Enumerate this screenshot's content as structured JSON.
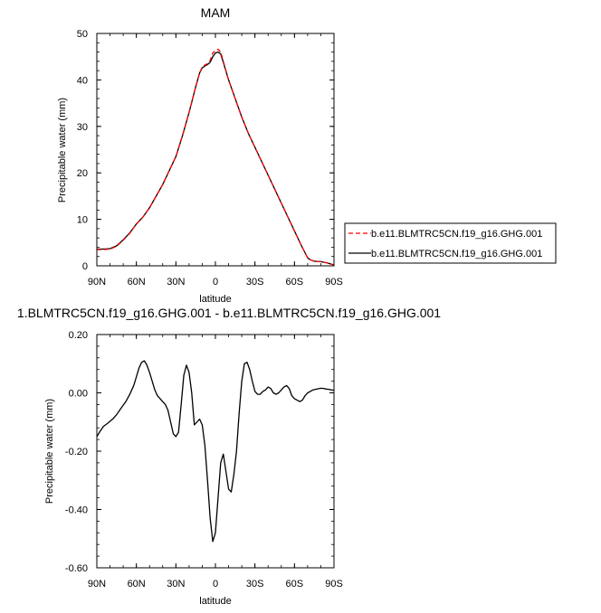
{
  "chart_data": [
    {
      "type": "line",
      "title": "MAM",
      "xlabel": "latitude",
      "ylabel": "Precipitable water (mm)",
      "x_tick_labels": [
        "90N",
        "60N",
        "30N",
        "0",
        "30S",
        "60S",
        "90S"
      ],
      "x_tick_values": [
        90,
        60,
        30,
        0,
        -30,
        -60,
        -90
      ],
      "xlim": [
        90,
        -90
      ],
      "ylim": [
        0,
        50
      ],
      "y_ticks": [
        0,
        10,
        20,
        30,
        40,
        50
      ],
      "y_tick_labels": [
        "0",
        "10",
        "20",
        "30",
        "40",
        "50"
      ],
      "grid": false,
      "legend_placement": "right",
      "series": [
        {
          "name": "b.e11.BLMTRC5CN.f19_g16.GHG.001",
          "color": "#ff0000",
          "style": "dashed",
          "x": [
            90,
            85,
            80,
            75,
            70,
            65,
            60,
            55,
            50,
            45,
            40,
            35,
            30,
            25,
            20,
            15,
            12,
            10,
            8,
            6,
            4,
            2,
            0,
            -2,
            -4,
            -6,
            -8,
            -10,
            -15,
            -20,
            -25,
            -30,
            -35,
            -40,
            -45,
            -50,
            -55,
            -60,
            -65,
            -70,
            -72,
            -75,
            -80,
            -85,
            -90
          ],
          "y": [
            3.5,
            3.5,
            3.6,
            4.2,
            5.5,
            7.0,
            9.0,
            10.5,
            12.5,
            15.0,
            17.5,
            20.5,
            23.5,
            28.0,
            33.0,
            38.5,
            41.5,
            42.8,
            43.2,
            43.5,
            44.2,
            45.8,
            46.3,
            46.6,
            46.0,
            44.0,
            42.0,
            40.0,
            36.0,
            32.0,
            28.5,
            25.5,
            22.5,
            19.5,
            16.5,
            13.5,
            10.5,
            7.5,
            4.5,
            1.7,
            1.3,
            1.0,
            0.9,
            0.6,
            0.2
          ]
        },
        {
          "name": "b.e11.BLMTRC5CN.f19_g16.GHG.001",
          "color": "#000000",
          "style": "solid",
          "x": [
            90,
            85,
            80,
            75,
            70,
            65,
            60,
            55,
            50,
            45,
            40,
            35,
            30,
            25,
            20,
            15,
            12,
            10,
            8,
            6,
            4,
            2,
            0,
            -2,
            -4,
            -6,
            -8,
            -10,
            -15,
            -20,
            -25,
            -30,
            -35,
            -40,
            -45,
            -50,
            -55,
            -60,
            -65,
            -70,
            -72,
            -75,
            -80,
            -85,
            -90
          ],
          "y": [
            3.6,
            3.6,
            3.7,
            4.3,
            5.6,
            7.1,
            9.0,
            10.5,
            12.5,
            15.0,
            17.5,
            20.5,
            23.5,
            28.0,
            33.0,
            38.5,
            41.5,
            42.6,
            43.0,
            43.3,
            43.8,
            45.0,
            45.8,
            46.0,
            45.6,
            43.8,
            41.9,
            40.0,
            36.0,
            32.0,
            28.5,
            25.5,
            22.5,
            19.5,
            16.5,
            13.5,
            10.5,
            7.5,
            4.5,
            1.7,
            1.3,
            1.0,
            0.9,
            0.6,
            0.2
          ]
        }
      ]
    },
    {
      "type": "line",
      "title": "1.BLMTRC5CN.f19_g16.GHG.001 - b.e11.BLMTRC5CN.f19_g16.GHG.001",
      "xlabel": "latitude",
      "ylabel": "Precipitable water (mm)",
      "x_tick_labels": [
        "90N",
        "60N",
        "30N",
        "0",
        "30S",
        "60S",
        "90S"
      ],
      "x_tick_values": [
        90,
        60,
        30,
        0,
        -30,
        -60,
        -90
      ],
      "xlim": [
        90,
        -90
      ],
      "ylim": [
        -0.6,
        0.2
      ],
      "y_ticks": [
        -0.6,
        -0.4,
        -0.2,
        0.0,
        0.2
      ],
      "y_tick_labels": [
        "-0.60",
        "-0.40",
        "-0.20",
        "0.00",
        "0.20"
      ],
      "grid": false,
      "series": [
        {
          "color": "#000000",
          "style": "solid",
          "x": [
            90,
            88,
            85,
            82,
            78,
            75,
            72,
            68,
            65,
            62,
            60,
            58,
            56,
            54,
            52,
            50,
            48,
            46,
            44,
            42,
            40,
            38,
            36,
            34,
            32,
            30,
            28,
            26,
            24,
            22,
            20,
            18,
            16,
            14,
            12,
            10,
            8,
            6,
            4,
            2,
            0,
            -2,
            -4,
            -6,
            -8,
            -10,
            -12,
            -14,
            -16,
            -18,
            -20,
            -22,
            -24,
            -26,
            -28,
            -30,
            -32,
            -34,
            -36,
            -38,
            -40,
            -42,
            -44,
            -46,
            -48,
            -50,
            -52,
            -54,
            -56,
            -58,
            -60,
            -62,
            -64,
            -66,
            -68,
            -70,
            -72,
            -74,
            -76,
            -78,
            -80,
            -82,
            -84,
            -86,
            -88,
            -90
          ],
          "y": [
            -0.15,
            -0.135,
            -0.115,
            -0.105,
            -0.09,
            -0.075,
            -0.055,
            -0.03,
            -0.005,
            0.025,
            0.055,
            0.085,
            0.105,
            0.11,
            0.095,
            0.07,
            0.04,
            0.01,
            -0.01,
            -0.02,
            -0.03,
            -0.04,
            -0.06,
            -0.1,
            -0.14,
            -0.15,
            -0.135,
            -0.04,
            0.06,
            0.095,
            0.07,
            0.0,
            -0.11,
            -0.1,
            -0.09,
            -0.11,
            -0.18,
            -0.3,
            -0.43,
            -0.51,
            -0.48,
            -0.36,
            -0.24,
            -0.21,
            -0.27,
            -0.33,
            -0.34,
            -0.28,
            -0.2,
            -0.07,
            0.04,
            0.1,
            0.105,
            0.08,
            0.04,
            0.005,
            -0.005,
            -0.005,
            0.005,
            0.01,
            0.02,
            0.015,
            0.0,
            -0.005,
            0.0,
            0.01,
            0.02,
            0.025,
            0.015,
            -0.01,
            -0.02,
            -0.025,
            -0.03,
            -0.025,
            -0.01,
            0.0,
            0.005,
            0.01,
            0.012,
            0.014,
            0.016,
            0.015,
            0.013,
            0.012,
            0.01,
            0.009
          ]
        }
      ]
    }
  ]
}
